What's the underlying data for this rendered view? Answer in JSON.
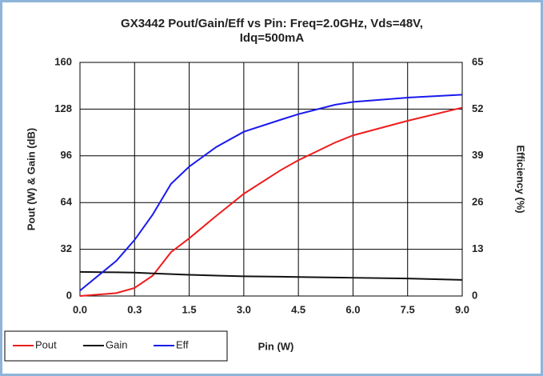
{
  "chart_data": {
    "type": "line",
    "title": [
      "GX3442 Pout/Gain/Eff vs Pin: Freq=2.0GHz, Vds=48V,",
      "Idq=500mA"
    ],
    "x_label": "Pin (W)",
    "y_label": "Pout (W) & Gain (dB)",
    "y2_label": "Efficiency (%)",
    "x": [
      0,
      0.2,
      0.3,
      0.7,
      1.1,
      1.5,
      2.25,
      3,
      4,
      4.5,
      5.5,
      6,
      7.5,
      9
    ],
    "series": [
      {
        "name": "Pout",
        "color": "#ee1c1c",
        "values": [
          0,
          2,
          5.5,
          14,
          30,
          39.5,
          55,
          70,
          86,
          93,
          105,
          110,
          120,
          129
        ]
      },
      {
        "name": "Gain",
        "color": "#111111",
        "values": [
          16.5,
          16.2,
          16,
          15.5,
          15,
          14.5,
          14,
          13.5,
          13.2,
          13,
          12.7,
          12.5,
          12,
          11
        ]
      },
      {
        "name": "Eff",
        "color": "#1a1aee",
        "axis": "y2",
        "values": [
          1.5,
          9.8,
          15.6,
          22.7,
          31.2,
          36,
          41.5,
          45.7,
          49,
          50.6,
          53.2,
          54,
          55.2,
          56
        ]
      }
    ],
    "xlim": [
      0,
      9
    ],
    "xticks": [
      {
        "value": 0,
        "label": "0.0"
      },
      0.3,
      1.5,
      {
        "value": 3,
        "label": "3.0"
      },
      4.5,
      {
        "value": 6,
        "label": "6.0"
      },
      7.5,
      {
        "value": 9,
        "label": "9.0"
      }
    ],
    "ylim": [
      0,
      160
    ],
    "yticks": [
      0,
      32,
      64,
      96,
      128,
      160
    ],
    "y2lim": [
      0,
      65
    ],
    "y2ticks": [
      0,
      13,
      26,
      39,
      52,
      65
    ],
    "grid": true,
    "legend": "bottom-left"
  }
}
